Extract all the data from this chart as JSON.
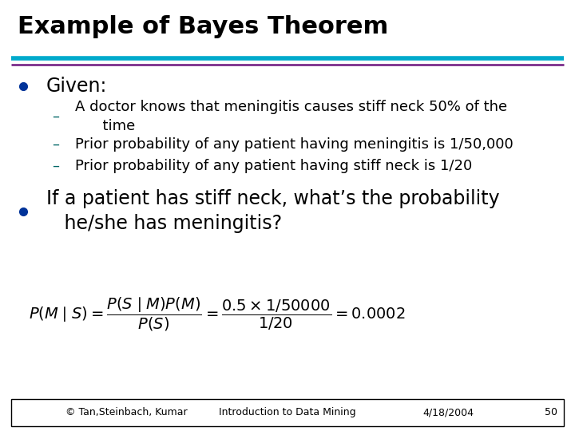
{
  "title": "Example of Bayes Theorem",
  "title_fontsize": 22,
  "title_color": "#000000",
  "bg_color": "#ffffff",
  "header_line1_color": "#00AACC",
  "header_line2_color": "#7B2D8B",
  "bullet_color": "#003399",
  "bullet1_text": "Given:",
  "bullet1_fontsize": 17,
  "sub_bullets": [
    "A doctor knows that meningitis causes stiff neck 50% of the\n      time",
    "Prior probability of any patient having meningitis is 1/50,000",
    "Prior probability of any patient having stiff neck is 1/20"
  ],
  "sub_bullet_fontsize": 13,
  "sub_bullet_dash_color": "#006666",
  "bullet2_text": "If a patient has stiff neck, what’s the probability\n   he/she has meningitis?",
  "bullet2_fontsize": 17,
  "formula": "$P(M\\mid S) = \\dfrac{P(S\\mid M)P(M)}{P(S)} = \\dfrac{0.5 \\times 1/50000}{1/20} = 0.0002$",
  "formula_fontsize": 14,
  "footer_text1": "© Tan,Steinbach, Kumar",
  "footer_text2": "Introduction to Data Mining",
  "footer_text3": "4/18/2004",
  "footer_text4": "50",
  "footer_fontsize": 9,
  "footer_line_color": "#000000"
}
